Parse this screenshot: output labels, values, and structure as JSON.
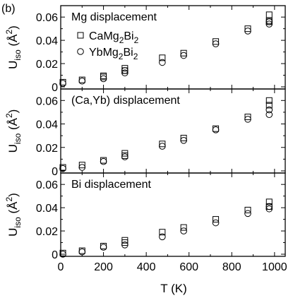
{
  "chart_data": {
    "type": "scatter",
    "panel_label": "(b)",
    "xlabel": "T (K)",
    "xlim": [
      0,
      1050
    ],
    "x_ticks": [
      0,
      200,
      400,
      600,
      800,
      1000
    ],
    "x_tick_labels": [
      "0",
      "200",
      "400",
      "600",
      "800",
      "1000"
    ],
    "ylabel_main": "U",
    "ylabel_sub": "iso",
    "ylabel_unit_open": " (",
    "ylabel_unit": "Å",
    "ylabel_unit_sup": "2",
    "ylabel_unit_close": ")",
    "ylim": [
      0,
      0.068
    ],
    "y_ticks": [
      0,
      0.02,
      0.04,
      0.06
    ],
    "y_tick_labels": [
      "0",
      "0.02",
      "0.04",
      "0.06"
    ],
    "grid": false,
    "legend": {
      "placement": "top-left",
      "entries": [
        {
          "marker": "square",
          "formula": [
            "CaMg",
            "2",
            "Bi",
            "2"
          ]
        },
        {
          "marker": "circle",
          "formula": [
            "YbMg",
            "2",
            "Bi",
            "2"
          ]
        }
      ]
    },
    "panels": [
      {
        "title": "Mg displacement",
        "series": [
          {
            "marker": "square",
            "x": [
              10,
              100,
              200,
              200,
              300,
              300,
              475,
              575,
              725,
              875,
              975,
              975,
              975
            ],
            "y": [
              0.004,
              0.006,
              0.0095,
              0.0085,
              0.016,
              0.014,
              0.025,
              0.029,
              0.039,
              0.05,
              0.062,
              0.057,
              0.056
            ]
          },
          {
            "marker": "circle",
            "x": [
              10,
              100,
              200,
              300,
              300,
              475,
              575,
              725,
              875,
              975,
              975
            ],
            "y": [
              0.003,
              0.005,
              0.007,
              0.012,
              0.014,
              0.021,
              0.027,
              0.037,
              0.048,
              0.056,
              0.054
            ]
          }
        ]
      },
      {
        "title": "(Ca,Yb) displacement",
        "series": [
          {
            "marker": "square",
            "x": [
              10,
              100,
              200,
              300,
              300,
              475,
              575,
              725,
              875,
              975,
              975
            ],
            "y": [
              0.003,
              0.005,
              0.009,
              0.015,
              0.013,
              0.023,
              0.028,
              0.036,
              0.046,
              0.06,
              0.056
            ]
          },
          {
            "marker": "circle",
            "x": [
              10,
              100,
              200,
              300,
              475,
              575,
              725,
              875,
              975,
              975
            ],
            "y": [
              0.002,
              0.003,
              0.008,
              0.012,
              0.021,
              0.026,
              0.035,
              0.044,
              0.052,
              0.048
            ]
          }
        ]
      },
      {
        "title": "Bi displacement",
        "series": [
          {
            "marker": "square",
            "x": [
              10,
              100,
              200,
              300,
              300,
              475,
              575,
              725,
              875,
              975,
              975
            ],
            "y": [
              0.001,
              0.003,
              0.007,
              0.012,
              0.01,
              0.019,
              0.023,
              0.03,
              0.038,
              0.045,
              0.041
            ]
          },
          {
            "marker": "circle",
            "x": [
              10,
              100,
              200,
              300,
              475,
              575,
              725,
              875,
              975,
              975
            ],
            "y": [
              0.0,
              0.002,
              0.006,
              0.008,
              0.015,
              0.02,
              0.027,
              0.035,
              0.041,
              0.039
            ]
          }
        ]
      }
    ]
  }
}
